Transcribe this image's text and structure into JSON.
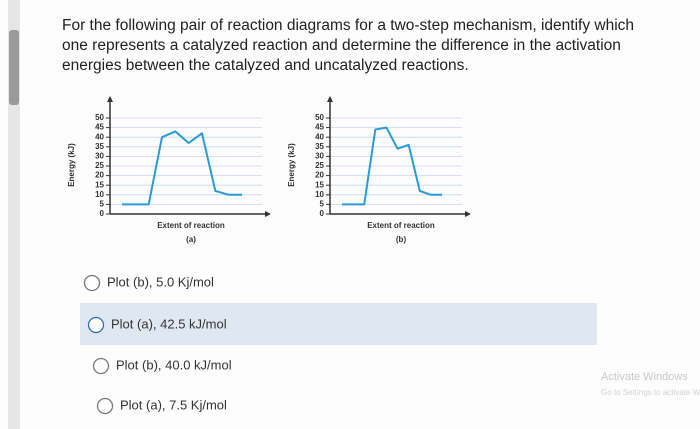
{
  "question": "For the following pair of reaction diagrams for a two-step mechanism, identify which one represents a catalyzed reaction and determine the difference in the activation energies between the catalyzed and uncatalyzed reactions.",
  "charts": [
    {
      "type": "line",
      "ylabel": "Energy (kJ)",
      "xlabel": "Extent of reaction",
      "caption": "(a)",
      "ylim": [
        0,
        50
      ],
      "yticks": [
        0,
        5,
        10,
        15,
        20,
        25,
        30,
        35,
        40,
        45,
        50
      ],
      "grid": true,
      "color": "#2a9bd8",
      "values": [
        5,
        5,
        5,
        40,
        43,
        37,
        42,
        12,
        10,
        10
      ]
    },
    {
      "type": "line",
      "ylabel": "Energy (kJ)",
      "xlabel": "Extent of reaction",
      "caption": "(b)",
      "ylim": [
        0,
        50
      ],
      "yticks": [
        0,
        5,
        10,
        15,
        20,
        25,
        30,
        35,
        40,
        45,
        50
      ],
      "grid": true,
      "color": "#2a9bd8",
      "values": [
        5,
        5,
        5,
        44,
        45,
        34,
        36,
        12,
        10,
        10
      ]
    }
  ],
  "options": [
    "Plot (b), 5.0 Kj/mol",
    "Plot (a), 42.5 kJ/mol",
    "Plot (b), 40.0 kJ/mol",
    "Plot (a), 7.5 Kj/mol"
  ],
  "watermark": {
    "title": "Activate Windows",
    "subtitle": "Go to Settings to activate Windows."
  }
}
